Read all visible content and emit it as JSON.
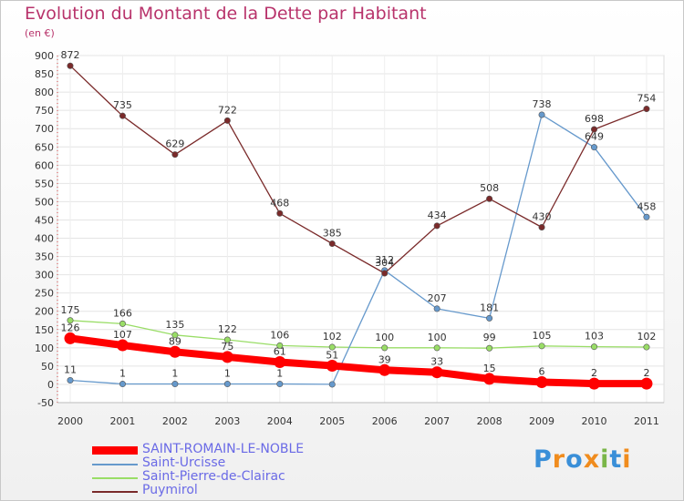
{
  "chart_data": {
    "type": "line",
    "title": "Evolution du Montant de la Dette par Habitant",
    "subtitle": "(en €)",
    "x": [
      "2000",
      "2001",
      "2002",
      "2003",
      "2004",
      "2005",
      "2006",
      "2007",
      "2008",
      "2009",
      "2010",
      "2011"
    ],
    "ylim": [
      -50,
      900
    ],
    "yticks": [
      -50,
      0,
      50,
      100,
      150,
      200,
      250,
      300,
      350,
      400,
      450,
      500,
      550,
      600,
      650,
      700,
      750,
      800,
      850,
      900
    ],
    "grid": true,
    "legend_position": "bottom-left",
    "series": [
      {
        "name": "SAINT-ROMAIN-LE-NOBLE",
        "color": "#ff0000",
        "values": [
          126,
          107,
          89,
          75,
          61,
          51,
          39,
          33,
          15,
          6,
          2,
          2
        ]
      },
      {
        "name": "Saint-Urcisse",
        "color": "#6699cc",
        "values": [
          11,
          1,
          1,
          1,
          1,
          0,
          312,
          207,
          181,
          738,
          649,
          458
        ]
      },
      {
        "name": "Saint-Pierre-de-Clairac",
        "color": "#99dd66",
        "values": [
          175,
          166,
          135,
          122,
          106,
          102,
          100,
          100,
          99,
          105,
          103,
          102
        ]
      },
      {
        "name": "Puymirol",
        "color": "#7a2a2a",
        "values": [
          872,
          735,
          629,
          722,
          468,
          385,
          304,
          434,
          508,
          430,
          698,
          754
        ]
      }
    ],
    "data_labels": {
      "Saint-Urcisse": [
        "11",
        "1",
        "1",
        "1",
        "1",
        "",
        "312",
        "207",
        "181",
        "738",
        "649",
        "458"
      ]
    }
  },
  "logo": {
    "text": "Proxiti",
    "colors": [
      "#3a8fd8",
      "#f08c1e",
      "#3a8fd8",
      "#f08c1e",
      "#7ab648",
      "#3a8fd8",
      "#f08c1e"
    ]
  }
}
